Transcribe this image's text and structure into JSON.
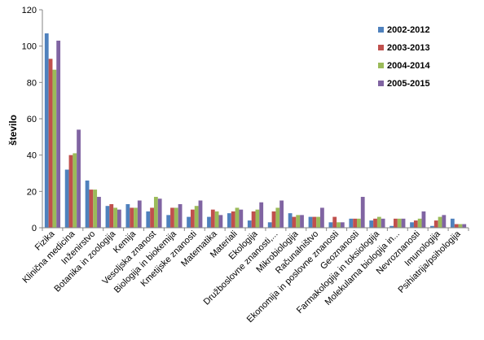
{
  "chart_data": {
    "type": "bar",
    "title": "",
    "xlabel": "",
    "ylabel": "število",
    "ylim": [
      0,
      120
    ],
    "yticks": [
      0,
      20,
      40,
      60,
      80,
      100,
      120
    ],
    "grid": false,
    "legend_position": "top-right",
    "categories": [
      "Fizika",
      "Klinična medicina",
      "Inženirstvo",
      "Botanika in zoologija",
      "Kemija",
      "Vesoljska znanost",
      "Biologija in biokemija",
      "Kmetijske znanosti",
      "Matematika",
      "Materiali",
      "Ekologija",
      "Družboslovne znanosti,...",
      "Mikrobiologija",
      "Računalništvo",
      "Ekonomija in poslovne znanosti",
      "Geoznanosti",
      "Farmakologija in toksiologija",
      "Molekularna biologija in...",
      "Nevroznanosti",
      "Imunologija",
      "Psihiatrija/psihologija"
    ],
    "series": [
      {
        "name": "2002-2012",
        "color": "#4F81BD",
        "values": [
          107,
          32,
          26,
          12,
          13,
          9,
          7,
          6,
          6,
          8,
          4,
          3,
          8,
          6,
          3,
          5,
          4,
          1,
          3,
          1,
          5
        ]
      },
      {
        "name": "2003-2013",
        "color": "#C0504D",
        "values": [
          93,
          40,
          21,
          13,
          11,
          11,
          11,
          10,
          10,
          9,
          9,
          9,
          6,
          6,
          6,
          5,
          5,
          5,
          4,
          4,
          2
        ]
      },
      {
        "name": "2004-2014",
        "color": "#9BBB59",
        "values": [
          87,
          41,
          21,
          11,
          11,
          17,
          11,
          12,
          9,
          11,
          10,
          11,
          7,
          6,
          3,
          5,
          6,
          5,
          5,
          6,
          2
        ]
      },
      {
        "name": "2005-2015",
        "color": "#8064A2",
        "values": [
          103,
          54,
          17,
          10,
          15,
          16,
          13,
          15,
          7,
          10,
          14,
          15,
          7,
          11,
          3,
          17,
          5,
          5,
          9,
          7,
          2
        ]
      }
    ]
  }
}
